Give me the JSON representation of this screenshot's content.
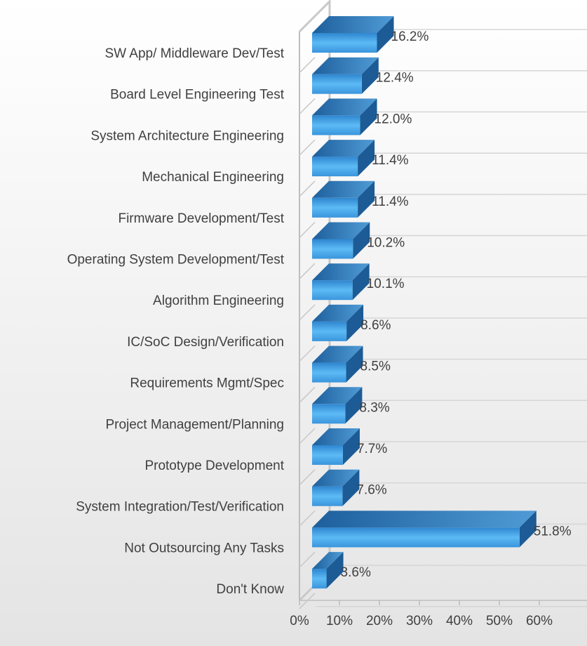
{
  "chart_data": {
    "type": "bar3d_horizontal",
    "categories": [
      "SW App/ Middleware Dev/Test",
      "Board Level Engineering Test",
      "System Architecture Engineering",
      "Mechanical Engineering",
      "Firmware Development/Test",
      "Operating System Development/Test",
      "Algorithm Engineering",
      "IC/SoC Design/Verification",
      "Requirements Mgmt/Spec",
      "Project Management/Planning",
      "Prototype Development",
      "System Integration/Test/Verification",
      "Not Outsourcing Any Tasks",
      "Don't Know"
    ],
    "values": [
      16.2,
      12.4,
      12.0,
      11.4,
      11.4,
      10.2,
      10.1,
      8.6,
      8.5,
      8.3,
      7.7,
      7.6,
      51.8,
      3.6
    ],
    "value_labels": [
      "16.2%",
      "12.4%",
      "12.0%",
      "11.4%",
      "11.4%",
      "10.2%",
      "10.1%",
      "8.6%",
      "8.5%",
      "8.3%",
      "7.7%",
      "7.6%",
      "51.8%",
      "3.6%"
    ],
    "color": "#4aa8ec",
    "xlim": [
      0,
      60
    ],
    "xticks": [
      {
        "value": 0,
        "label": "0%"
      },
      {
        "value": 10,
        "label": "10%"
      },
      {
        "value": 20,
        "label": "20%"
      },
      {
        "value": 30,
        "label": "30%"
      },
      {
        "value": 40,
        "label": "40%"
      },
      {
        "value": 50,
        "label": "50%"
      },
      {
        "value": 60,
        "label": "60%"
      }
    ]
  }
}
